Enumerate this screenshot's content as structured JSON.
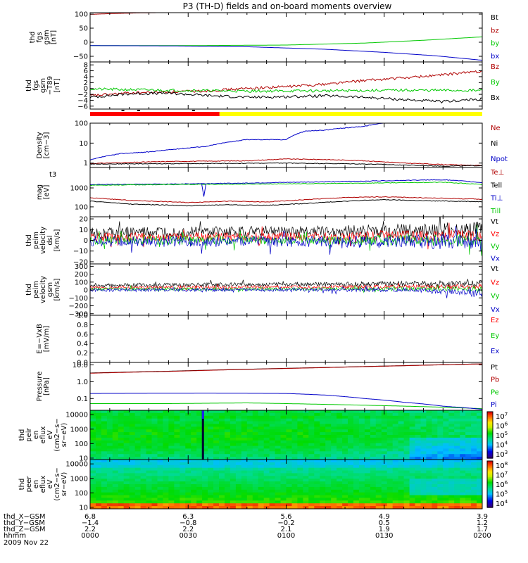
{
  "title": "P3 (TH-D) fields and on-board moments overview",
  "chart_data": [
    {
      "id": "fgs",
      "type": "line",
      "ylabel": [
        "thd",
        "fgs",
        "gsm",
        "[nT]"
      ],
      "yticks": [
        "100",
        "50",
        "0",
        "−50"
      ],
      "ylim": [
        -70,
        105
      ],
      "series": [
        {
          "name": "Bt",
          "color": "#000000",
          "points": [
            [
              0,
              105
            ],
            [
              0.25,
              105
            ]
          ]
        },
        {
          "name": "bz",
          "color": "#b00000",
          "points": [
            [
              0,
              99
            ],
            [
              0.06,
              102
            ],
            [
              0.12,
              104
            ],
            [
              0.2,
              105.5
            ]
          ]
        },
        {
          "name": "by",
          "color": "#00c800",
          "points": [
            [
              0,
              -12
            ],
            [
              0.25,
              -12
            ],
            [
              0.5,
              -10
            ],
            [
              0.7,
              -3
            ],
            [
              0.85,
              7
            ],
            [
              1,
              19
            ]
          ]
        },
        {
          "name": "bx",
          "color": "#0000c8",
          "points": [
            [
              0,
              -12
            ],
            [
              0.2,
              -13
            ],
            [
              0.4,
              -16
            ],
            [
              0.6,
              -25
            ],
            [
              0.75,
              -36
            ],
            [
              0.88,
              -48
            ],
            [
              1,
              -64
            ]
          ]
        }
      ]
    },
    {
      "id": "fgs-dt",
      "type": "line",
      "ylabel": [
        "thd",
        "fgs",
        "gsm",
        "−T89",
        "[nT]"
      ],
      "yticks": [
        "8",
        "6",
        "4",
        "2",
        "0",
        "−2",
        "−4",
        "−6"
      ],
      "ylim": [
        -7,
        9
      ],
      "series": [
        {
          "name": "Bz",
          "color": "#b00000",
          "points": [
            [
              0,
              -2.5
            ],
            [
              0.1,
              -1.5
            ],
            [
              0.2,
              -1.2
            ],
            [
              0.3,
              -0.8
            ],
            [
              0.4,
              0
            ],
            [
              0.5,
              0.6
            ],
            [
              0.6,
              1.5
            ],
            [
              0.7,
              2.7
            ],
            [
              0.8,
              3.6
            ],
            [
              0.9,
              4.6
            ],
            [
              0.95,
              5.3
            ],
            [
              1,
              5.8
            ]
          ]
        },
        {
          "name": "By",
          "color": "#00c800",
          "points": [
            [
              0,
              -0.2
            ],
            [
              0.2,
              -0.6
            ],
            [
              0.4,
              -0.9
            ],
            [
              0.6,
              -0.8
            ],
            [
              0.8,
              -0.6
            ],
            [
              1,
              -0.7
            ]
          ]
        },
        {
          "name": "Bx",
          "color": "#000000",
          "points": [
            [
              0,
              -3
            ],
            [
              0.1,
              -1.8
            ],
            [
              0.2,
              -1.6
            ],
            [
              0.3,
              -2.4
            ],
            [
              0.4,
              -3
            ],
            [
              0.5,
              -2.8
            ],
            [
              0.6,
              -2.5
            ],
            [
              0.7,
              -3
            ],
            [
              0.8,
              -3.8
            ],
            [
              0.9,
              -4.5
            ],
            [
              0.95,
              -4
            ],
            [
              1,
              -3.6
            ]
          ]
        }
      ],
      "bar": {
        "red_until": 0.33,
        "red_color": "#ff0000",
        "yellow_color": "#ffff00"
      }
    },
    {
      "id": "density",
      "type": "line",
      "scale": "log",
      "ylabel": [
        "Density",
        "[cm−3]"
      ],
      "yticks": [
        "100",
        "10",
        "1"
      ],
      "ylim": [
        0.6,
        100
      ],
      "series": [
        {
          "name": "Ne",
          "color": "#b00000",
          "points": [
            [
              0,
              0.95
            ],
            [
              0.2,
              1.2
            ],
            [
              0.4,
              1.3
            ],
            [
              0.5,
              1.6
            ],
            [
              0.6,
              1.5
            ],
            [
              0.7,
              1.3
            ],
            [
              0.8,
              1.0
            ],
            [
              0.9,
              0.85
            ],
            [
              1,
              0.75
            ]
          ]
        },
        {
          "name": "Ni",
          "color": "#000000",
          "points": [
            [
              0,
              0.9
            ],
            [
              0.3,
              0.95
            ],
            [
              0.5,
              1.0
            ],
            [
              0.6,
              0.95
            ],
            [
              0.7,
              0.9
            ],
            [
              0.8,
              0.8
            ],
            [
              0.9,
              0.7
            ],
            [
              1,
              0.75
            ]
          ]
        },
        {
          "name": "Npot",
          "color": "#0000c8",
          "points": [
            [
              0,
              1.4
            ],
            [
              0.08,
              3
            ],
            [
              0.15,
              3.6
            ],
            [
              0.22,
              5
            ],
            [
              0.3,
              7
            ],
            [
              0.4,
              15
            ],
            [
              0.5,
              15
            ],
            [
              0.55,
              40
            ],
            [
              0.6,
              45
            ],
            [
              0.7,
              70
            ],
            [
              0.77,
              120
            ]
          ]
        }
      ]
    },
    {
      "id": "mag",
      "type": "line",
      "scale": "log",
      "ylabel": [
        "mag",
        "[eV]"
      ],
      "ylabel_note": "t3",
      "yticks": [
        "1000",
        "100"
      ],
      "ylim": [
        30,
        12000
      ],
      "series": [
        {
          "name": "Te⊥",
          "color": "#b00000",
          "points": [
            [
              0,
              300
            ],
            [
              0.1,
              220
            ],
            [
              0.25,
              170
            ],
            [
              0.35,
              200
            ],
            [
              0.45,
              180
            ],
            [
              0.55,
              240
            ],
            [
              0.65,
              310
            ],
            [
              0.75,
              340
            ],
            [
              0.85,
              300
            ],
            [
              1,
              250
            ]
          ]
        },
        {
          "name": "Tell",
          "color": "#000000",
          "points": [
            [
              0,
              200
            ],
            [
              0.1,
              140
            ],
            [
              0.25,
              115
            ],
            [
              0.35,
              130
            ],
            [
              0.45,
              120
            ],
            [
              0.55,
              150
            ],
            [
              0.65,
              200
            ],
            [
              0.75,
              240
            ],
            [
              0.85,
              210
            ],
            [
              1,
              190
            ]
          ]
        },
        {
          "name": "Ti⊥",
          "color": "#0000c8",
          "points": [
            [
              0,
              1500
            ],
            [
              0.2,
              1600
            ],
            [
              0.4,
              1800
            ],
            [
              0.6,
              2100
            ],
            [
              0.8,
              2500
            ],
            [
              0.9,
              2700
            ],
            [
              1,
              1900
            ]
          ]
        },
        {
          "name": "Till",
          "color": "#00c800",
          "points": [
            [
              0,
              1400
            ],
            [
              0.2,
              1500
            ],
            [
              0.4,
              1600
            ],
            [
              0.6,
              1700
            ],
            [
              0.8,
              1900
            ],
            [
              0.9,
              2000
            ],
            [
              1,
              1500
            ]
          ]
        }
      ]
    },
    {
      "id": "peim-dsl",
      "type": "line",
      "ylabel": [
        "thd",
        "peim",
        "velocity",
        "dsl",
        "[km/s]"
      ],
      "yticks": [
        "20",
        "10",
        "0",
        "−10",
        "−20"
      ],
      "ylim": [
        -22,
        22
      ],
      "noise": true,
      "series": [
        {
          "name": "Vt",
          "color": "#000000",
          "level": 7,
          "amp": 5
        },
        {
          "name": "Vz",
          "color": "#ff0000",
          "level": 3,
          "amp": 4
        },
        {
          "name": "Vy",
          "color": "#00c800",
          "level": 0,
          "amp": 4
        },
        {
          "name": "Vx",
          "color": "#0000c8",
          "level": -1,
          "amp": 5
        }
      ]
    },
    {
      "id": "peim-gsm",
      "type": "line",
      "ylabel": [
        "thd",
        "peim",
        "velocity",
        "gsm",
        "[km/s]"
      ],
      "yticks": [
        "300",
        "200",
        "100",
        "0",
        "−100",
        "−200",
        "−300"
      ],
      "ylim": [
        -320,
        330
      ],
      "noise": true,
      "series": [
        {
          "name": "Vt",
          "color": "#000000",
          "level": 60,
          "amp": 25
        },
        {
          "name": "Vz",
          "color": "#ff0000",
          "level": 30,
          "amp": 20
        },
        {
          "name": "Vy",
          "color": "#00c800",
          "level": 10,
          "amp": 20
        },
        {
          "name": "Vx",
          "color": "#0000c8",
          "level": 0,
          "amp": 20
        }
      ]
    },
    {
      "id": "efield",
      "type": "line",
      "ylabel": [
        "E=−VxB",
        "[mV/m]"
      ],
      "yticks": [
        "1.0",
        "0.8",
        "0.6",
        "0.4",
        "0.2",
        "0.0"
      ],
      "ylim": [
        0,
        1
      ],
      "series": [
        {
          "name": "Ez",
          "color": "#ff0000",
          "points": []
        },
        {
          "name": "Ey",
          "color": "#00c800",
          "points": []
        },
        {
          "name": "Ex",
          "color": "#0000c8",
          "points": []
        }
      ]
    },
    {
      "id": "pressure",
      "type": "line",
      "scale": "log",
      "ylabel": [
        "Pressure",
        "[nPa]"
      ],
      "yticks": [
        "10.0",
        "1.0",
        "0.1"
      ],
      "ylim": [
        0.02,
        14
      ],
      "series": [
        {
          "name": "Pt",
          "color": "#000000",
          "points": [
            [
              0,
              3.3
            ],
            [
              0.2,
              4.2
            ],
            [
              0.4,
              5.5
            ],
            [
              0.6,
              7
            ],
            [
              0.8,
              9
            ],
            [
              1,
              11.5
            ]
          ]
        },
        {
          "name": "Pb",
          "color": "#b00000",
          "points": [
            [
              0,
              3.2
            ],
            [
              0.2,
              4.1
            ],
            [
              0.4,
              5.4
            ],
            [
              0.6,
              6.9
            ],
            [
              0.8,
              8.9
            ],
            [
              1,
              11.4
            ]
          ]
        },
        {
          "name": "Pe",
          "color": "#00c800",
          "points": [
            [
              0,
              0.05
            ],
            [
              0.2,
              0.05
            ],
            [
              0.4,
              0.055
            ],
            [
              0.5,
              0.05
            ],
            [
              0.7,
              0.04
            ],
            [
              0.85,
              0.033
            ],
            [
              1,
              0.025
            ]
          ]
        },
        {
          "name": "Pi",
          "color": "#0000c8",
          "points": [
            [
              0,
              0.2
            ],
            [
              0.3,
              0.21
            ],
            [
              0.5,
              0.2
            ],
            [
              0.6,
              0.16
            ],
            [
              0.7,
              0.1
            ],
            [
              0.8,
              0.06
            ],
            [
              0.9,
              0.035
            ],
            [
              1,
              0.023
            ]
          ]
        }
      ]
    },
    {
      "id": "peir-spec",
      "type": "heatmap",
      "ylabel": [
        "thd",
        "peir",
        "en",
        "eflux",
        "eV",
        "(cm2−s−",
        "sr−eV)"
      ],
      "yticks": [
        "10000",
        "1000",
        "100",
        "10"
      ],
      "colorbar_labels": [
        "10^7",
        "10^6",
        "10^5",
        "10^4",
        "10^3"
      ]
    },
    {
      "id": "peer-spec",
      "type": "heatmap",
      "ylabel": [
        "thd",
        "peer",
        "en",
        "eflux",
        "eV",
        "(cm2−s−",
        "sr−eV)"
      ],
      "yticks": [
        "10000",
        "1000",
        "100",
        "10"
      ],
      "colorbar_labels": [
        "10^8",
        "10^7",
        "10^6",
        "10^5",
        "10^4"
      ]
    }
  ],
  "footer": {
    "row_labels": [
      "thd_X−GSM",
      "thd_Y−GSM",
      "thd_Z−GSM",
      "hhmm"
    ],
    "date": "2009 Nov 22",
    "columns": [
      [
        "6.8",
        "−1.4",
        "2.2",
        "0000"
      ],
      [
        "6.3",
        "−0.8",
        "2.2",
        "0030"
      ],
      [
        "5.6",
        "−0.2",
        "2.1",
        "0100"
      ],
      [
        "4.9",
        "0.5",
        "1.9",
        "0130"
      ],
      [
        "3.9",
        "1.2",
        "1.7",
        "0200"
      ]
    ]
  }
}
